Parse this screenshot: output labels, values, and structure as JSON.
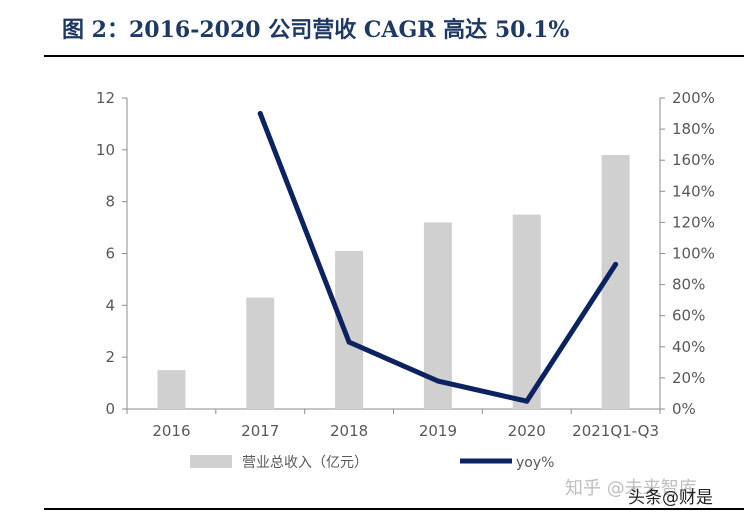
{
  "header": {
    "title": "图 2：2016-2020 公司营收 CAGR 高达 50.1%"
  },
  "footer": {
    "watermark": "知乎 @未来智库",
    "watermark2": "头条@财是"
  },
  "colors": {
    "bar": "#d0d0d0",
    "line": "#0d2260",
    "title": "#1f3864",
    "axis": "#8c8c8c"
  },
  "chart_data": {
    "type": "bar",
    "categories": [
      "2016",
      "2017",
      "2018",
      "2019",
      "2020",
      "2021Q1-Q3"
    ],
    "ylim": [
      0,
      12
    ],
    "y_ticks": [
      "0",
      "2",
      "4",
      "6",
      "8",
      "10",
      "12"
    ],
    "y2lim": [
      0,
      200
    ],
    "y2_ticks": [
      "0%",
      "20%",
      "40%",
      "60%",
      "80%",
      "100%",
      "120%",
      "140%",
      "160%",
      "180%",
      "200%"
    ],
    "grid": false,
    "legend_position": "bottom",
    "series": [
      {
        "name": "营业总收入（亿元）",
        "type": "bar",
        "axis": "left",
        "values": [
          1.5,
          4.3,
          6.1,
          7.2,
          7.5,
          9.8
        ]
      },
      {
        "name": "yoy%",
        "type": "line",
        "axis": "right",
        "values": [
          null,
          190,
          43,
          18,
          5,
          93
        ]
      }
    ]
  }
}
